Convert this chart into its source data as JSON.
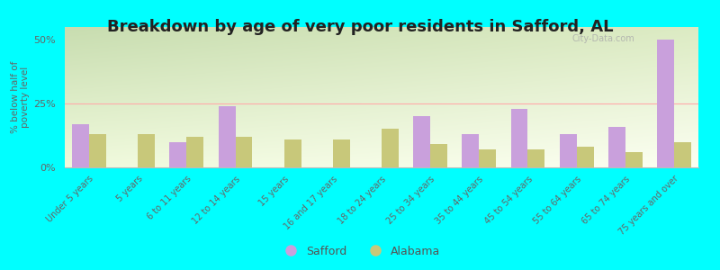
{
  "title": "Breakdown by age of very poor residents in Safford, AL",
  "ylabel": "% below half of\npoverty level",
  "categories": [
    "Under 5 years",
    "5 years",
    "6 to 11 years",
    "12 to 14 years",
    "15 years",
    "16 and 17 years",
    "18 to 24 years",
    "25 to 34 years",
    "35 to 44 years",
    "45 to 54 years",
    "55 to 64 years",
    "65 to 74 years",
    "75 years and over"
  ],
  "safford": [
    17,
    0,
    10,
    24,
    0,
    0,
    0,
    20,
    13,
    23,
    13,
    16,
    50
  ],
  "alabama": [
    13,
    13,
    12,
    12,
    11,
    11,
    15,
    9,
    7,
    7,
    8,
    6,
    10
  ],
  "safford_color": "#c9a0dc",
  "alabama_color": "#c8c87a",
  "background_color": "#00ffff",
  "grad_top_left": "#c8ddb0",
  "grad_bottom_right": "#f8fff0",
  "ylim": [
    0,
    55
  ],
  "yticks": [
    0,
    25,
    50
  ],
  "ytick_labels": [
    "0%",
    "25%",
    "50%"
  ],
  "bar_width": 0.35,
  "title_fontsize": 13,
  "legend_labels": [
    "Safford",
    "Alabama"
  ],
  "watermark": "City-Data.com"
}
